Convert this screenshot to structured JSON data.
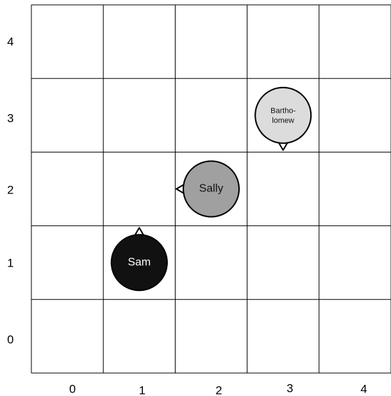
{
  "grid": {
    "columns": 5,
    "rows": 5,
    "x_labels": [
      "0",
      "1",
      "2",
      "3",
      "4"
    ],
    "y_labels": [
      "0",
      "1",
      "2",
      "3",
      "4"
    ]
  },
  "agents": [
    {
      "name": "Sam",
      "col": 1,
      "row": 1,
      "facing": "up",
      "fill": "#111111",
      "text_color": "#ffffff"
    },
    {
      "name": "Sally",
      "col": 2,
      "row": 2,
      "facing": "left",
      "fill": "#a0a0a0",
      "text_color": "#111111"
    },
    {
      "name_lines": [
        "Bartho-",
        "lomew"
      ],
      "col": 3,
      "row": 3,
      "facing": "down",
      "fill": "#dcdcdc",
      "text_color": "#111111"
    }
  ],
  "colors": {
    "grid_line": "#000000",
    "background": "#ffffff"
  }
}
